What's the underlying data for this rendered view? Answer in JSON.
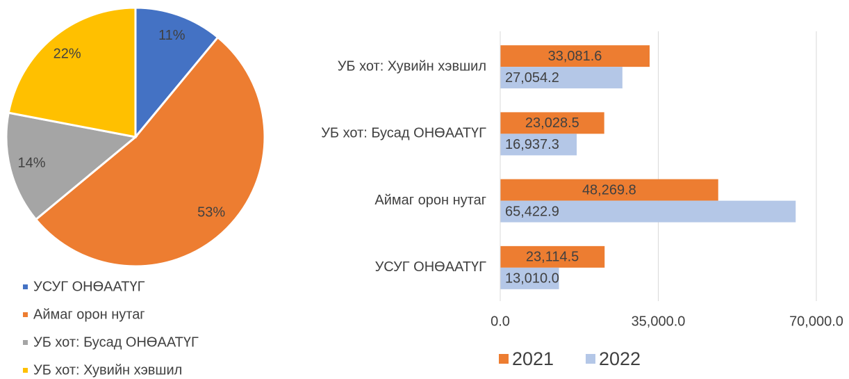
{
  "chart_data": [
    {
      "type": "pie",
      "categories": [
        "УСУГ ОНӨААТҮГ",
        "Аймаг орон нутаг",
        "УБ хот: Бусад ОНӨААТҮГ",
        "УБ хот: Хувийн хэвшил"
      ],
      "values": [
        11,
        53,
        14,
        22
      ],
      "value_labels": [
        "11%",
        "53%",
        "14%",
        "22%"
      ],
      "colors": [
        "#4472c4",
        "#ed7d31",
        "#a5a5a5",
        "#ffc000"
      ]
    },
    {
      "type": "bar",
      "orientation": "horizontal",
      "categories": [
        "УБ хот: Хувийн хэвшил",
        "УБ хот: Бусад ОНӨААТҮГ",
        "Аймаг орон нутаг",
        "УСУГ ОНӨААТҮГ"
      ],
      "series": [
        {
          "name": "2021",
          "color": "#ed7d31",
          "values": [
            33081.6,
            23028.5,
            48269.8,
            23114.5
          ],
          "value_labels": [
            "33,081.6",
            "23,028.5",
            "48,269.8",
            "23,114.5"
          ]
        },
        {
          "name": "2022",
          "color": "#b4c7e7",
          "values": [
            27054.2,
            16937.3,
            65422.9,
            13010.0
          ],
          "value_labels": [
            "27,054.2",
            "16,937.3",
            "65,422.9",
            "13,010.0"
          ]
        }
      ],
      "xlim": [
        0,
        70000
      ],
      "xticks": [
        {
          "value": 0,
          "label": "0.0"
        },
        {
          "value": 35000,
          "label": "35,000.0"
        },
        {
          "value": 70000,
          "label": "70,000.0"
        }
      ],
      "grid": true
    }
  ]
}
